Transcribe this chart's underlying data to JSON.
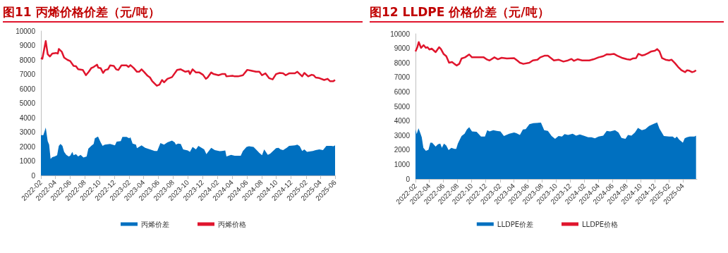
{
  "chart_data": [
    {
      "type": "area",
      "title": "图11  丙烯价格价差（元/吨）",
      "xlim": [
        "2022-02",
        "2025-06"
      ],
      "xticks": [
        "2022-02",
        "2022-04",
        "2022-06",
        "2022-08",
        "2022-10",
        "2022-12",
        "2023-02",
        "2023-04",
        "2023-06",
        "2023-08",
        "2023-10",
        "2023-12",
        "2024-02",
        "2024-04",
        "2024-06",
        "2024-08",
        "2024-10",
        "2024-12",
        "2025-02",
        "2025-04",
        "2025-06"
      ],
      "ylim": [
        0,
        10000
      ],
      "yticks": [
        0,
        1000,
        2000,
        3000,
        4000,
        5000,
        6000,
        7000,
        8000,
        9000,
        10000
      ],
      "grid": false,
      "legend": "bottom",
      "marker": "none",
      "series": [
        {
          "name": "丙烯价差",
          "type": "area",
          "color": "#0070c0",
          "x": [
            "2022-02-01",
            "2022-02-11",
            "2022-02-21",
            "2022-03-01",
            "2022-03-07",
            "2022-03-13",
            "2022-03-20",
            "2022-03-30",
            "2022-04-09",
            "2022-04-16",
            "2022-04-23",
            "2022-05-01",
            "2022-05-08",
            "2022-05-17",
            "2022-05-27",
            "2022-06-02",
            "2022-06-11",
            "2022-06-16",
            "2022-06-26",
            "2022-07-05",
            "2022-07-15",
            "2022-07-27",
            "2022-08-09",
            "2022-08-16",
            "2022-08-28",
            "2022-09-07",
            "2022-09-12",
            "2022-09-25",
            "2022-10-06",
            "2022-10-14",
            "2022-10-23",
            "2022-11-14",
            "2022-12-04",
            "2022-12-11",
            "2022-12-28",
            "2023-01-04",
            "2023-01-21",
            "2023-02-01",
            "2023-02-06",
            "2023-02-15",
            "2023-03-01",
            "2023-03-05",
            "2023-03-24",
            "2023-04-08",
            "2023-04-28",
            "2023-05-17",
            "2023-05-28",
            "2023-06-10",
            "2023-06-25",
            "2023-07-09",
            "2023-07-28",
            "2023-08-08",
            "2023-08-13",
            "2023-08-22",
            "2023-09-02",
            "2023-09-12",
            "2023-10-01",
            "2023-10-10",
            "2023-10-21",
            "2023-11-04",
            "2023-11-14",
            "2023-12-08",
            "2023-12-17",
            "2024-01-06",
            "2024-01-21",
            "2024-02-10",
            "2024-02-19",
            "2024-03-04",
            "2024-03-09",
            "2024-03-28",
            "2024-04-12",
            "2024-05-07",
            "2024-05-16",
            "2024-05-31",
            "2024-06-10",
            "2024-06-29",
            "2024-07-09",
            "2024-07-23",
            "2024-08-03",
            "2024-08-12",
            "2024-08-27",
            "2024-09-06",
            "2024-09-30",
            "2024-10-10",
            "2024-10-19",
            "2024-10-29",
            "2024-11-13",
            "2024-11-23",
            "2024-12-17",
            "2024-12-27",
            "2025-01-06",
            "2025-01-16",
            "2025-01-25",
            "2025-02-05",
            "2025-03-01",
            "2025-03-13",
            "2025-03-28",
            "2025-04-12",
            "2025-04-26",
            "2025-05-16",
            "2025-05-25",
            "2025-06-01"
          ],
          "values": [
            2790,
            2790,
            3320,
            2380,
            2130,
            1150,
            1270,
            1320,
            1400,
            2050,
            2180,
            2050,
            1640,
            1430,
            1320,
            1370,
            1640,
            1400,
            1480,
            1320,
            1430,
            1240,
            1320,
            1850,
            2050,
            2180,
            2570,
            2700,
            2290,
            2050,
            2130,
            2180,
            2080,
            2340,
            2380,
            2670,
            2670,
            2570,
            2650,
            2210,
            2130,
            1890,
            2080,
            1920,
            1810,
            1690,
            1690,
            2250,
            2130,
            2290,
            2410,
            2290,
            2130,
            2210,
            2180,
            1810,
            1730,
            1640,
            1970,
            1810,
            2050,
            1810,
            1480,
            1920,
            1760,
            1680,
            1690,
            1730,
            1320,
            1430,
            1370,
            1370,
            1690,
            1970,
            2020,
            1970,
            1810,
            1560,
            1400,
            1810,
            1430,
            1510,
            1890,
            1920,
            1810,
            1760,
            1920,
            2050,
            2080,
            2130,
            2020,
            1690,
            1810,
            1640,
            1690,
            1760,
            1810,
            1760,
            2050,
            2050,
            2020,
            2080
          ]
        },
        {
          "name": "丙烯价格",
          "type": "line",
          "color": "#e0152d",
          "x": [
            "2022-02-01",
            "2022-02-07",
            "2022-02-21",
            "2022-03-01",
            "2022-03-10",
            "2022-03-20",
            "2022-04-04",
            "2022-04-12",
            "2022-04-16",
            "2022-04-28",
            "2022-05-08",
            "2022-05-22",
            "2022-06-02",
            "2022-06-16",
            "2022-06-26",
            "2022-07-05",
            "2022-07-24",
            "2022-08-06",
            "2022-08-18",
            "2022-08-28",
            "2022-09-07",
            "2022-09-21",
            "2022-09-26",
            "2022-10-06",
            "2022-10-16",
            "2022-10-25",
            "2022-11-05",
            "2022-11-14",
            "2022-11-29",
            "2022-12-09",
            "2022-12-18",
            "2022-12-31",
            "2023-01-21",
            "2023-01-29",
            "2023-02-06",
            "2023-02-20",
            "2023-03-05",
            "2023-03-14",
            "2023-03-24",
            "2023-04-03",
            "2023-04-18",
            "2023-04-28",
            "2023-05-07",
            "2023-05-26",
            "2023-06-06",
            "2023-06-17",
            "2023-06-25",
            "2023-07-09",
            "2023-07-28",
            "2023-08-18",
            "2023-09-02",
            "2023-09-21",
            "2023-10-05",
            "2023-10-10",
            "2023-10-21",
            "2023-11-04",
            "2023-11-18",
            "2023-12-03",
            "2023-12-15",
            "2023-12-22",
            "2024-01-06",
            "2024-01-16",
            "2024-02-05",
            "2024-02-19",
            "2024-03-04",
            "2024-03-09",
            "2024-04-03",
            "2024-04-12",
            "2024-04-26",
            "2024-05-16",
            "2024-06-03",
            "2024-06-19",
            "2024-07-09",
            "2024-07-23",
            "2024-08-03",
            "2024-08-17",
            "2024-09-01",
            "2024-09-16",
            "2024-09-30",
            "2024-10-15",
            "2024-10-29",
            "2024-11-09",
            "2024-11-23",
            "2024-12-17",
            "2024-12-27",
            "2025-01-06",
            "2025-01-16",
            "2025-01-25",
            "2025-02-10",
            "2025-02-24",
            "2025-03-04",
            "2025-03-13",
            "2025-03-28",
            "2025-04-17",
            "2025-05-01",
            "2025-05-11",
            "2025-05-25",
            "2025-06-01"
          ],
          "values": [
            8130,
            8080,
            9300,
            8400,
            8240,
            8440,
            8480,
            8440,
            8760,
            8570,
            8160,
            8000,
            7920,
            7590,
            7560,
            7350,
            7310,
            6940,
            7180,
            7430,
            7510,
            7670,
            7460,
            7430,
            7100,
            7300,
            7350,
            7620,
            7590,
            7350,
            7300,
            7620,
            7620,
            7510,
            7640,
            7430,
            7180,
            7180,
            7350,
            7180,
            6900,
            6780,
            6530,
            6210,
            6290,
            6610,
            6450,
            6690,
            6810,
            7300,
            7350,
            7180,
            7230,
            7020,
            7350,
            7130,
            7130,
            6970,
            6690,
            6780,
            7130,
            7020,
            6940,
            7020,
            7020,
            6860,
            6900,
            6860,
            6860,
            6940,
            7310,
            7260,
            7180,
            7180,
            6940,
            7070,
            6740,
            6650,
            7020,
            7100,
            7070,
            6940,
            7070,
            7070,
            7180,
            7020,
            6860,
            7100,
            6860,
            6970,
            6940,
            6780,
            6740,
            6610,
            6690,
            6530,
            6530,
            6610
          ]
        }
      ]
    },
    {
      "type": "area",
      "title": "图12  LLDPE 价格价差（元/吨）",
      "xlim": [
        "2022-02",
        "2025-06"
      ],
      "xticks": [
        "2022-02",
        "2022-04",
        "2022-06",
        "2022-08",
        "2022-10",
        "2022-12",
        "2023-02",
        "2023-04",
        "2023-06",
        "2023-08",
        "2023-10",
        "2023-12",
        "2024-02",
        "2024-04",
        "2024-06",
        "2024-08",
        "2024-10",
        "2024-12",
        "2025-02",
        "2025-04"
      ],
      "ylim": [
        0,
        10000
      ],
      "yticks": [
        0,
        1000,
        2000,
        3000,
        4000,
        5000,
        6000,
        7000,
        8000,
        9000,
        10000
      ],
      "grid": false,
      "legend": "bottom",
      "marker": "none",
      "series": [
        {
          "name": "LLDPE价差",
          "type": "area",
          "color": "#0070c0",
          "x": [
            "2022-02-01",
            "2022-02-06",
            "2022-02-14",
            "2022-02-22",
            "2022-02-28",
            "2022-03-07",
            "2022-03-18",
            "2022-03-29",
            "2022-04-06",
            "2022-04-14",
            "2022-04-29",
            "2022-05-09",
            "2022-05-19",
            "2022-05-26",
            "2022-06-04",
            "2022-06-14",
            "2022-06-24",
            "2022-07-06",
            "2022-07-19",
            "2022-07-27",
            "2022-08-03",
            "2022-08-19",
            "2022-09-01",
            "2022-09-11",
            "2022-09-21",
            "2022-10-03",
            "2022-10-23",
            "2022-11-11",
            "2022-11-28",
            "2022-12-08",
            "2022-12-18",
            "2023-01-03",
            "2023-01-18",
            "2023-02-03",
            "2023-02-18",
            "2023-03-13",
            "2023-04-03",
            "2023-04-13",
            "2023-04-28",
            "2023-05-11",
            "2023-05-23",
            "2023-06-08",
            "2023-06-25",
            "2023-07-28",
            "2023-08-11",
            "2023-08-27",
            "2023-09-12",
            "2023-09-27",
            "2023-10-12",
            "2023-10-27",
            "2023-11-07",
            "2023-11-22",
            "2023-12-12",
            "2023-12-27",
            "2024-01-12",
            "2024-02-02",
            "2024-02-17",
            "2024-03-02",
            "2024-03-17",
            "2024-04-02",
            "2024-04-22",
            "2024-05-07",
            "2024-05-22",
            "2024-06-12",
            "2024-06-27",
            "2024-07-10",
            "2024-07-27",
            "2024-08-07",
            "2024-08-22",
            "2024-09-06",
            "2024-09-19",
            "2024-10-06",
            "2024-10-21",
            "2024-11-06",
            "2024-11-26",
            "2024-12-11",
            "2024-12-21",
            "2025-01-09",
            "2025-02-01",
            "2025-02-16",
            "2025-02-26",
            "2025-03-06",
            "2025-03-16",
            "2025-04-01",
            "2025-04-09",
            "2025-04-19",
            "2025-05-01",
            "2025-05-21",
            "2025-05-28"
          ],
          "values": [
            3440,
            3090,
            3490,
            3150,
            2880,
            2150,
            1940,
            2020,
            2500,
            2500,
            2230,
            2390,
            2440,
            2150,
            2440,
            2310,
            1990,
            2150,
            2070,
            2070,
            2440,
            2960,
            3120,
            3410,
            3570,
            3280,
            3250,
            2930,
            2930,
            3360,
            3280,
            3360,
            3310,
            3280,
            2960,
            3120,
            3200,
            3150,
            3040,
            3410,
            3440,
            3770,
            3850,
            3880,
            3360,
            3310,
            2960,
            2770,
            2960,
            2930,
            3090,
            3040,
            3120,
            2990,
            3070,
            2960,
            2880,
            2880,
            2800,
            2930,
            2990,
            3310,
            3280,
            3360,
            3200,
            2830,
            2770,
            3040,
            2990,
            3200,
            3520,
            3360,
            3440,
            3650,
            3800,
            3900,
            3470,
            2960,
            2930,
            2930,
            2800,
            2930,
            2720,
            2500,
            2800,
            2880,
            2930,
            2930,
            2990
          ]
        },
        {
          "name": "LLDPE价格",
          "type": "line",
          "color": "#e0152d",
          "x": [
            "2022-02-01",
            "2022-02-09",
            "2022-02-15",
            "2022-02-25",
            "2022-03-08",
            "2022-03-18",
            "2022-03-25",
            "2022-04-02",
            "2022-04-12",
            "2022-04-29",
            "2022-05-14",
            "2022-05-22",
            "2022-06-02",
            "2022-06-14",
            "2022-06-26",
            "2022-07-09",
            "2022-07-19",
            "2022-07-29",
            "2022-08-09",
            "2022-08-19",
            "2022-09-03",
            "2022-09-21",
            "2022-10-03",
            "2022-10-28",
            "2022-11-23",
            "2022-12-08",
            "2022-12-18",
            "2023-01-08",
            "2023-01-23",
            "2023-02-08",
            "2023-03-03",
            "2023-04-03",
            "2023-04-18",
            "2023-04-28",
            "2023-05-13",
            "2023-06-08",
            "2023-06-23",
            "2023-07-13",
            "2023-07-25",
            "2023-08-12",
            "2023-08-27",
            "2023-09-22",
            "2023-10-12",
            "2023-11-02",
            "2023-11-22",
            "2023-12-07",
            "2023-12-17",
            "2024-01-02",
            "2024-01-22",
            "2024-02-22",
            "2024-03-12",
            "2024-04-02",
            "2024-04-22",
            "2024-05-07",
            "2024-05-22",
            "2024-06-07",
            "2024-06-22",
            "2024-07-11",
            "2024-08-02",
            "2024-08-17",
            "2024-08-27",
            "2024-09-11",
            "2024-09-21",
            "2024-10-06",
            "2024-10-16",
            "2024-11-01",
            "2024-11-16",
            "2024-12-01",
            "2024-12-11",
            "2024-12-21",
            "2025-01-01",
            "2025-01-16",
            "2025-02-01",
            "2025-02-11",
            "2025-02-26",
            "2025-03-11",
            "2025-03-26",
            "2025-04-11",
            "2025-04-19",
            "2025-04-29",
            "2025-05-11",
            "2025-05-21",
            "2025-05-28"
          ],
          "values": [
            8790,
            9080,
            9430,
            9030,
            9220,
            9030,
            9080,
            8920,
            8980,
            8740,
            9080,
            8950,
            8620,
            8460,
            8010,
            8060,
            7930,
            7820,
            7930,
            8300,
            8380,
            8580,
            8380,
            8380,
            8380,
            8220,
            8170,
            8380,
            8250,
            8350,
            8300,
            8330,
            8140,
            8010,
            7930,
            8010,
            8170,
            8220,
            8380,
            8490,
            8490,
            8170,
            8220,
            8090,
            8170,
            8270,
            8140,
            8250,
            8170,
            8170,
            8250,
            8380,
            8460,
            8590,
            8580,
            8620,
            8490,
            8350,
            8250,
            8220,
            8300,
            8330,
            8620,
            8510,
            8540,
            8660,
            8790,
            8830,
            8950,
            8790,
            8330,
            8220,
            8170,
            8220,
            7980,
            7730,
            7490,
            7360,
            7490,
            7460,
            7360,
            7410,
            7490
          ]
        }
      ]
    }
  ]
}
